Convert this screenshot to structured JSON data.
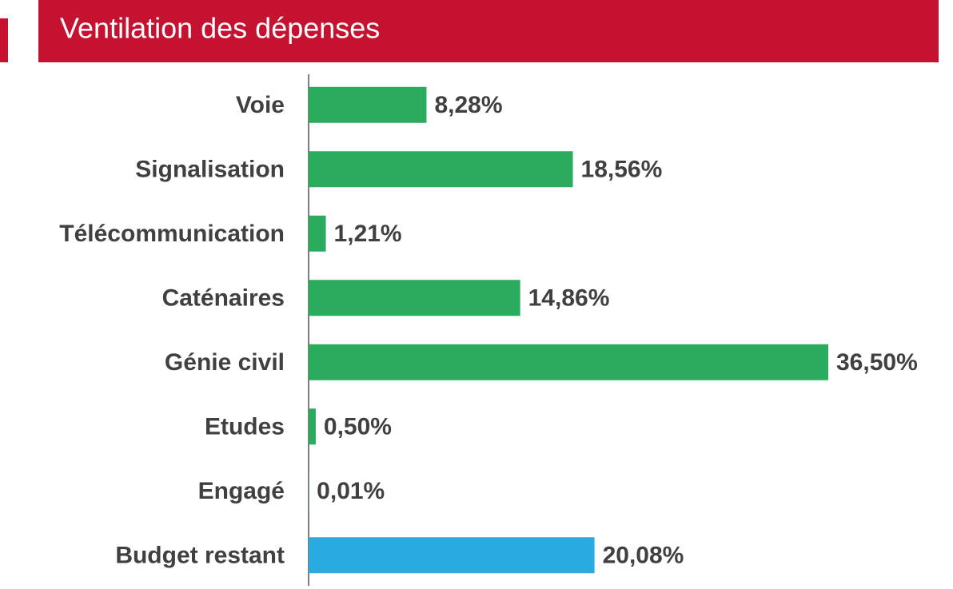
{
  "chart_data": {
    "type": "bar",
    "orientation": "horizontal",
    "title": "Ventilation des dépenses",
    "categories": [
      "Voie",
      "Signalisation",
      "Télécommunication",
      "Caténaires",
      "Génie civil",
      "Etudes",
      "Engagé",
      "Budget restant"
    ],
    "values": [
      8.28,
      18.56,
      1.21,
      14.86,
      36.5,
      0.5,
      0.01,
      20.08
    ],
    "value_labels": [
      "8,28%",
      "18,56%",
      "1,21%",
      "14,86%",
      "36,50%",
      "0,50%",
      "0,01%",
      "20,08%"
    ],
    "colors": [
      "#2bab5e",
      "#2bab5e",
      "#2bab5e",
      "#2bab5e",
      "#2bab5e",
      "#2bab5e",
      "#2bab5e",
      "#29abe2"
    ]
  }
}
